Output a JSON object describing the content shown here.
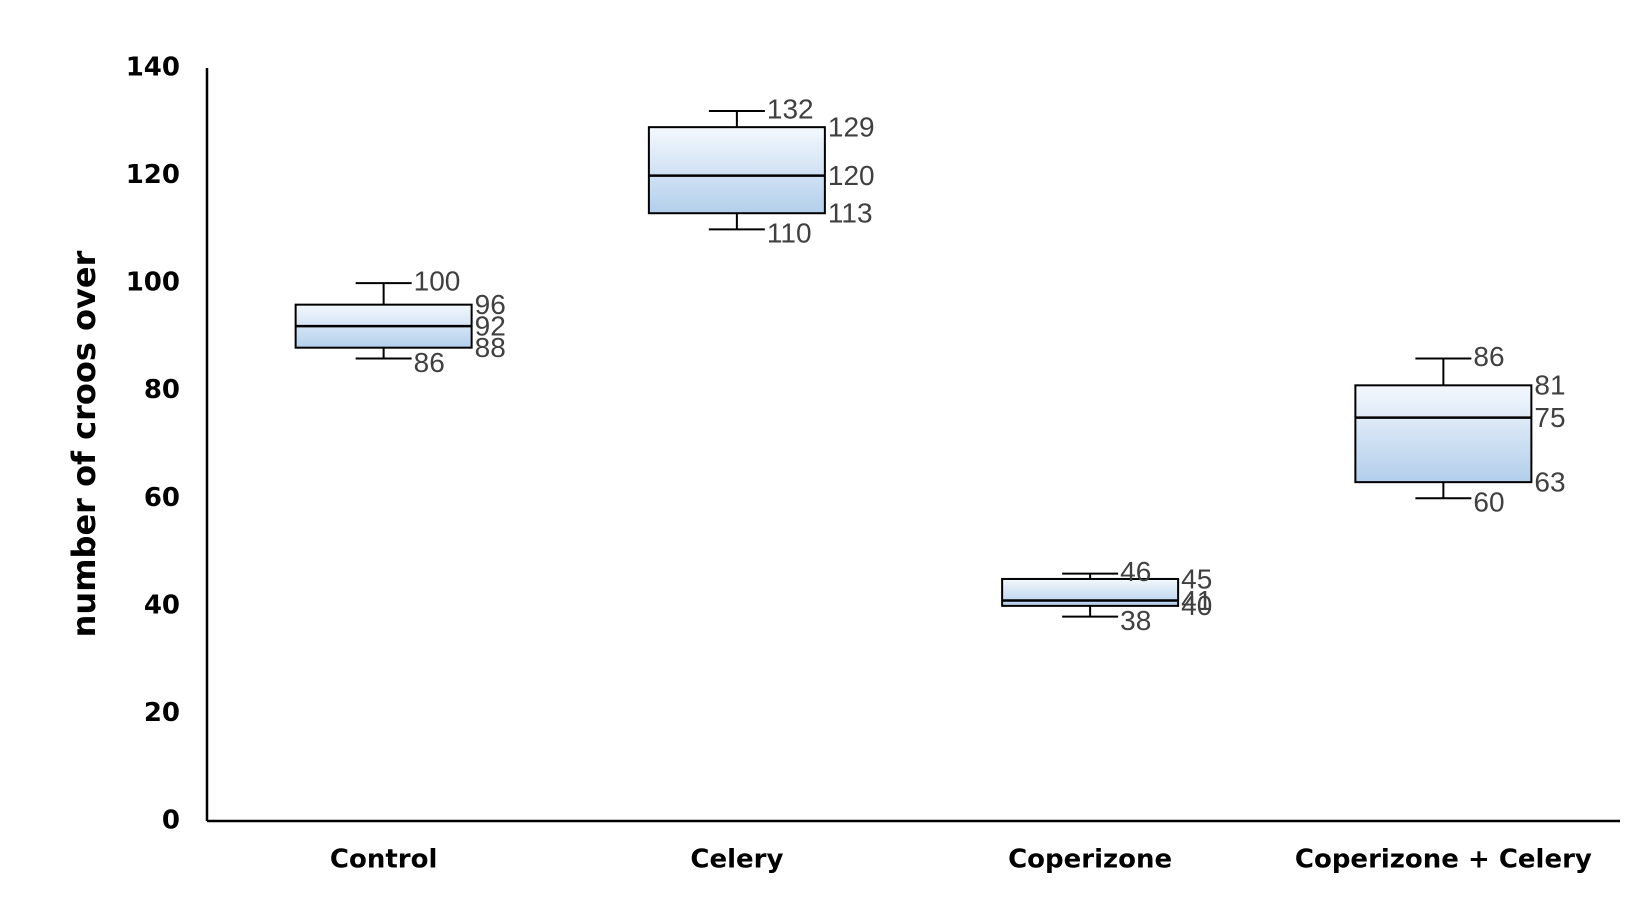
{
  "chart_data": {
    "type": "box",
    "ylabel": "number of croos over",
    "xlabel": "",
    "ylim": [
      0,
      140
    ],
    "yticks": [
      0,
      20,
      40,
      60,
      80,
      100,
      120,
      140
    ],
    "ytick_labels": [
      "0",
      "20",
      "40",
      "60",
      "80",
      "100",
      "120",
      "140"
    ],
    "grid": false,
    "legend": "none",
    "colors": {
      "box_top": "#f4f8fd",
      "box_bottom": "#b3cfec",
      "box_stroke": "#000000",
      "label": "#404040"
    },
    "categories": [
      "Control",
      "Celery",
      "Coperizone",
      "Coperizone + Celery"
    ],
    "boxes": [
      {
        "min": 86,
        "q1": 88,
        "median": 92,
        "q3": 96,
        "max": 100,
        "labels": {
          "min": "86",
          "q1": "88",
          "median": "92",
          "q3": "96",
          "max": "100"
        }
      },
      {
        "min": 110,
        "q1": 113,
        "median": 120,
        "q3": 129,
        "max": 132,
        "labels": {
          "min": "110",
          "q1": "113",
          "median": "120",
          "q3": "129",
          "max": "132"
        }
      },
      {
        "min": 38,
        "q1": 40,
        "median": 41,
        "q3": 45,
        "max": 46,
        "labels": {
          "min": "38",
          "q1": "40",
          "median": "41",
          "q3": "45",
          "max": "46"
        }
      },
      {
        "min": 60,
        "q1": 63,
        "median": 75,
        "q3": 81,
        "max": 86,
        "labels": {
          "min": "60",
          "q1": "63",
          "median": "75",
          "q3": "81",
          "max": "86"
        }
      }
    ]
  }
}
